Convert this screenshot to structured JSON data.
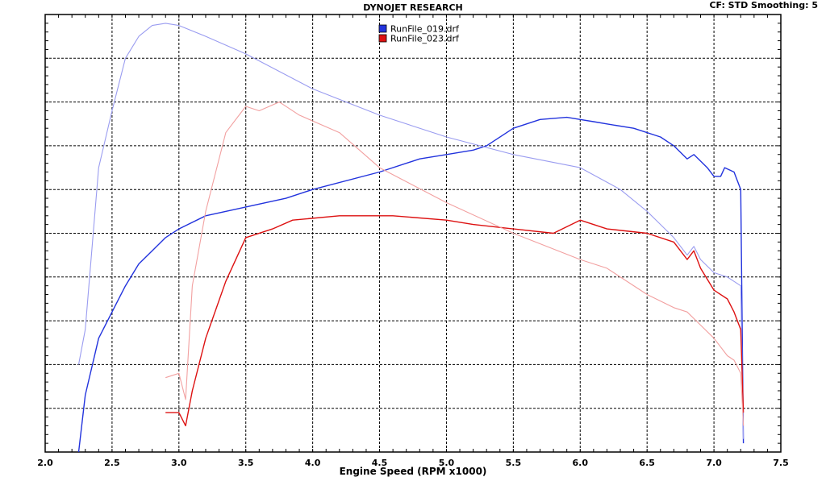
{
  "header": {
    "title": "DYNOJET RESEARCH",
    "info": "CF: STD  Smoothing: 5"
  },
  "chart_data": {
    "type": "line",
    "title": "DYNOJET RESEARCH",
    "xlabel": "Engine Speed (RPM x1000)",
    "ylabel": "",
    "xlim": [
      2.0,
      7.5
    ],
    "ylim": [
      0,
      10
    ],
    "x_ticks": [
      "2.0",
      "2.5",
      "3.0",
      "3.5",
      "4.0",
      "4.5",
      "5.0",
      "5.5",
      "6.0",
      "6.5",
      "7.0",
      "7.5"
    ],
    "y_tick_labels_visible": false,
    "grid": true,
    "legend_position": "top-center",
    "series": [
      {
        "name": "RunFile_019.drf",
        "color": "#2233dd",
        "kind": "power",
        "points": [
          [
            2.25,
            0.0
          ],
          [
            2.3,
            1.3
          ],
          [
            2.4,
            2.6
          ],
          [
            2.5,
            3.2
          ],
          [
            2.6,
            3.8
          ],
          [
            2.7,
            4.3
          ],
          [
            2.8,
            4.6
          ],
          [
            2.9,
            4.9
          ],
          [
            3.0,
            5.1
          ],
          [
            3.2,
            5.4
          ],
          [
            3.5,
            5.6
          ],
          [
            3.8,
            5.8
          ],
          [
            4.0,
            6.0
          ],
          [
            4.5,
            6.4
          ],
          [
            4.8,
            6.7
          ],
          [
            5.0,
            6.8
          ],
          [
            5.2,
            6.9
          ],
          [
            5.3,
            7.0
          ],
          [
            5.5,
            7.4
          ],
          [
            5.7,
            7.6
          ],
          [
            5.9,
            7.65
          ],
          [
            6.0,
            7.6
          ],
          [
            6.1,
            7.55
          ],
          [
            6.2,
            7.5
          ],
          [
            6.4,
            7.4
          ],
          [
            6.6,
            7.2
          ],
          [
            6.7,
            7.0
          ],
          [
            6.8,
            6.7
          ],
          [
            6.85,
            6.8
          ],
          [
            6.95,
            6.5
          ],
          [
            7.0,
            6.3
          ],
          [
            7.05,
            6.3
          ],
          [
            7.08,
            6.5
          ],
          [
            7.15,
            6.4
          ],
          [
            7.2,
            6.0
          ],
          [
            7.22,
            0.2
          ]
        ]
      },
      {
        "name": "",
        "color": "#9a9cf0",
        "kind": "torque",
        "points": [
          [
            2.25,
            2.0
          ],
          [
            2.3,
            2.8
          ],
          [
            2.4,
            6.5
          ],
          [
            2.5,
            7.8
          ],
          [
            2.6,
            9.0
          ],
          [
            2.7,
            9.5
          ],
          [
            2.8,
            9.75
          ],
          [
            2.9,
            9.8
          ],
          [
            3.0,
            9.75
          ],
          [
            3.2,
            9.5
          ],
          [
            3.5,
            9.1
          ],
          [
            4.0,
            8.3
          ],
          [
            4.5,
            7.7
          ],
          [
            5.0,
            7.2
          ],
          [
            5.5,
            6.8
          ],
          [
            6.0,
            6.5
          ],
          [
            6.3,
            6.0
          ],
          [
            6.5,
            5.5
          ],
          [
            6.6,
            5.2
          ],
          [
            6.7,
            4.9
          ],
          [
            6.8,
            4.5
          ],
          [
            6.85,
            4.7
          ],
          [
            6.9,
            4.4
          ],
          [
            7.0,
            4.1
          ],
          [
            7.1,
            4.0
          ],
          [
            7.2,
            3.8
          ],
          [
            7.22,
            0.3
          ]
        ]
      },
      {
        "name": "RunFile_023.drf",
        "color": "#dd1111",
        "kind": "power",
        "points": [
          [
            2.9,
            0.9
          ],
          [
            3.0,
            0.9
          ],
          [
            3.05,
            0.6
          ],
          [
            3.1,
            1.4
          ],
          [
            3.2,
            2.6
          ],
          [
            3.35,
            3.9
          ],
          [
            3.5,
            4.9
          ],
          [
            3.7,
            5.1
          ],
          [
            3.85,
            5.3
          ],
          [
            4.2,
            5.4
          ],
          [
            4.6,
            5.4
          ],
          [
            5.0,
            5.3
          ],
          [
            5.2,
            5.2
          ],
          [
            5.5,
            5.1
          ],
          [
            5.8,
            5.0
          ],
          [
            6.0,
            5.3
          ],
          [
            6.2,
            5.1
          ],
          [
            6.5,
            5.0
          ],
          [
            6.7,
            4.8
          ],
          [
            6.8,
            4.4
          ],
          [
            6.85,
            4.6
          ],
          [
            6.9,
            4.2
          ],
          [
            7.0,
            3.7
          ],
          [
            7.1,
            3.5
          ],
          [
            7.15,
            3.2
          ],
          [
            7.2,
            2.8
          ],
          [
            7.22,
            0.9
          ]
        ]
      },
      {
        "name": "",
        "color": "#f2a0a0",
        "kind": "torque",
        "points": [
          [
            2.9,
            1.7
          ],
          [
            3.0,
            1.8
          ],
          [
            3.05,
            1.2
          ],
          [
            3.1,
            3.8
          ],
          [
            3.2,
            5.5
          ],
          [
            3.35,
            7.3
          ],
          [
            3.5,
            7.9
          ],
          [
            3.6,
            7.8
          ],
          [
            3.75,
            8.0
          ],
          [
            3.9,
            7.7
          ],
          [
            4.2,
            7.3
          ],
          [
            4.5,
            6.5
          ],
          [
            5.0,
            5.7
          ],
          [
            5.5,
            5.0
          ],
          [
            6.0,
            4.4
          ],
          [
            6.2,
            4.2
          ],
          [
            6.5,
            3.6
          ],
          [
            6.7,
            3.3
          ],
          [
            6.8,
            3.2
          ],
          [
            6.9,
            2.9
          ],
          [
            7.0,
            2.6
          ],
          [
            7.1,
            2.2
          ],
          [
            7.15,
            2.1
          ],
          [
            7.2,
            1.8
          ],
          [
            7.22,
            0.6
          ]
        ]
      }
    ]
  }
}
